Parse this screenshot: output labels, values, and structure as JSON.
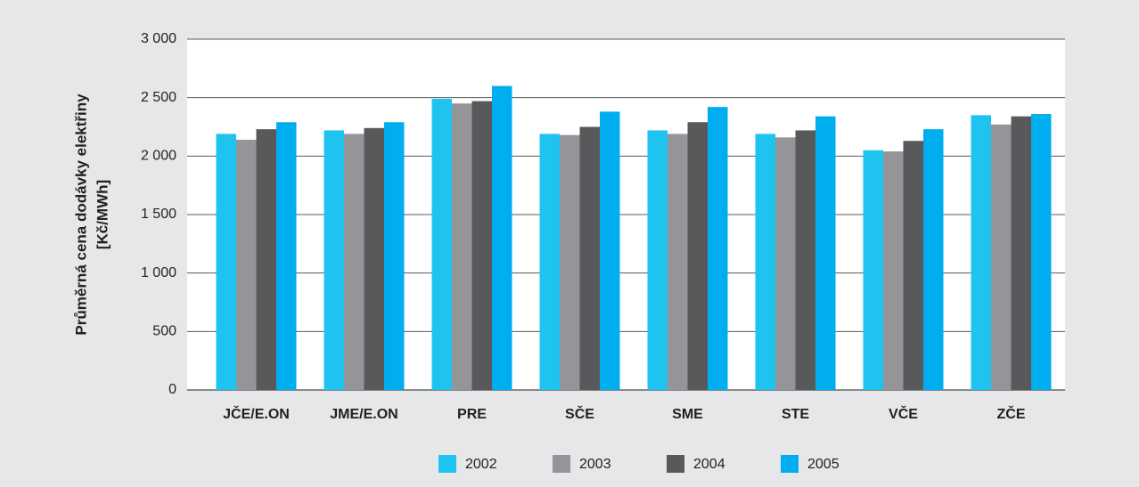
{
  "chart_data": {
    "type": "bar",
    "y_label": [
      "Průměrná cena dodávky elektřiny",
      "[Kč/MWh]"
    ],
    "categories": [
      "JČE/E.ON",
      "JME/E.ON",
      "PRE",
      "SČE",
      "SME",
      "STE",
      "VČE",
      "ZČE"
    ],
    "series": [
      {
        "name": "2002",
        "color": "#1ec3f0",
        "values": [
          2190,
          2220,
          2490,
          2190,
          2220,
          2190,
          2050,
          2350
        ]
      },
      {
        "name": "2003",
        "color": "#939598",
        "values": [
          2140,
          2190,
          2450,
          2180,
          2190,
          2160,
          2040,
          2270
        ]
      },
      {
        "name": "2004",
        "color": "#58595b",
        "values": [
          2230,
          2240,
          2470,
          2250,
          2290,
          2220,
          2130,
          2340
        ]
      },
      {
        "name": "2005",
        "color": "#00aeef",
        "values": [
          2290,
          2290,
          2600,
          2380,
          2420,
          2340,
          2230,
          2360
        ]
      }
    ],
    "ylim": [
      0,
      3000
    ],
    "yticks": [
      0,
      500,
      {
        "value": 1000,
        "label": "1 000"
      },
      {
        "value": 1500,
        "label": "1 500"
      },
      {
        "value": 2000,
        "label": "2 000"
      },
      {
        "value": 2500,
        "label": "2 500"
      },
      {
        "value": 3000,
        "label": "3 000"
      }
    ],
    "grid": true,
    "legend": "bottom"
  }
}
